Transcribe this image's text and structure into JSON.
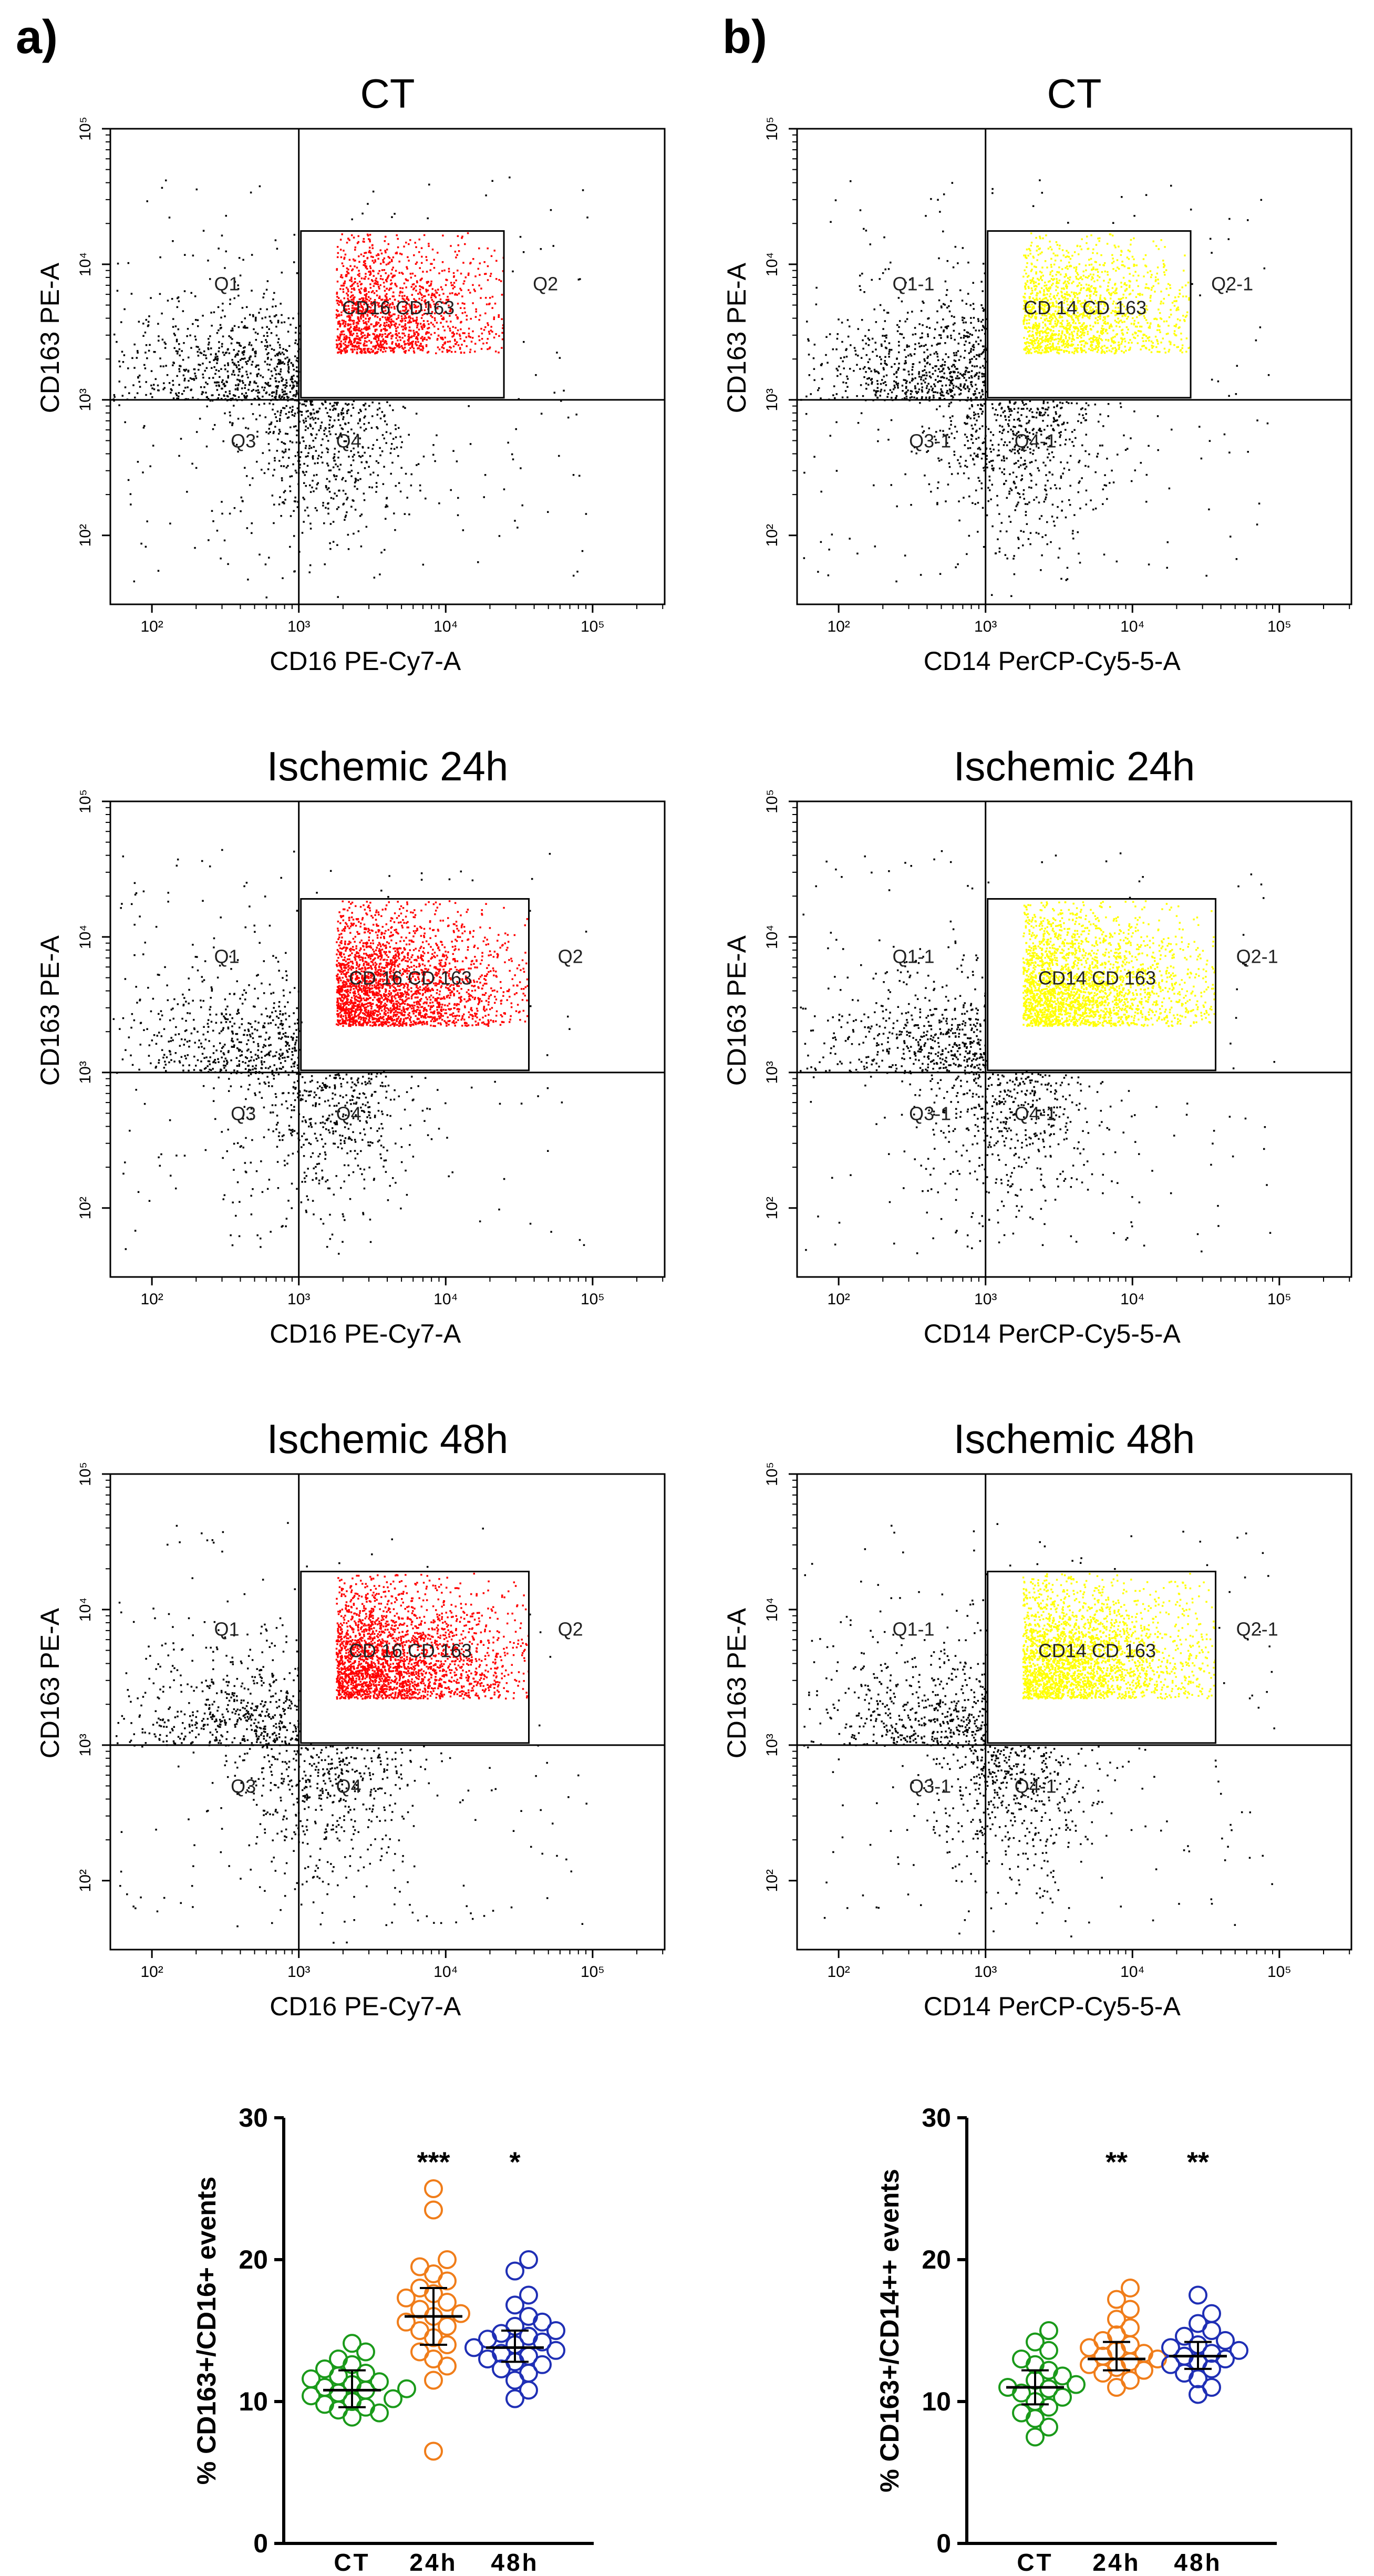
{
  "panels": {
    "a": {
      "letter": "a)"
    },
    "b": {
      "letter": "b)"
    }
  },
  "flow_plots": [
    {
      "id": "a1",
      "column": "a",
      "title": "CT",
      "xlabel": "CD16 PE-Cy7-A",
      "ylabel": "CD163 PE-A",
      "quadrants": [
        "Q1",
        "Q2",
        "Q3",
        "Q4"
      ],
      "gate_label": "CD16 CD163",
      "gate_color": "#ff0000",
      "x_ticks": [
        "10²",
        "10³",
        "10⁴",
        "10⁵"
      ],
      "y_ticks": [
        "10²",
        "10³",
        "10⁴",
        "10⁵"
      ],
      "density": "low"
    },
    {
      "id": "b1",
      "column": "b",
      "title": "CT",
      "xlabel": "CD14 PerCP-Cy5-5-A",
      "ylabel": "CD163 PE-A",
      "quadrants": [
        "Q1-1",
        "Q2-1",
        "Q3-1",
        "Q4-1"
      ],
      "gate_label": "CD 14 CD 163",
      "gate_color": "#ffff00",
      "x_ticks": [
        "10²",
        "10³",
        "10⁴",
        "10⁵"
      ],
      "y_ticks": [
        "10²",
        "10³",
        "10⁴",
        "10⁵"
      ],
      "density": "low"
    },
    {
      "id": "a2",
      "column": "a",
      "title": "Ischemic 24h",
      "xlabel": "CD16 PE-Cy7-A",
      "ylabel": "CD163 PE-A",
      "quadrants": [
        "Q1",
        "Q2",
        "Q3",
        "Q4"
      ],
      "gate_label": "CD 16 CD 163",
      "gate_color": "#ff0000",
      "x_ticks": [
        "10²",
        "10³",
        "10⁴",
        "10⁵"
      ],
      "y_ticks": [
        "10²",
        "10³",
        "10⁴",
        "10⁵"
      ],
      "density": "high"
    },
    {
      "id": "b2",
      "column": "b",
      "title": "Ischemic 24h",
      "xlabel": "CD14 PerCP-Cy5-5-A",
      "ylabel": "CD163 PE-A",
      "quadrants": [
        "Q1-1",
        "Q2-1",
        "Q3-1",
        "Q4-1"
      ],
      "gate_label": "CD14 CD 163",
      "gate_color": "#ffff00",
      "x_ticks": [
        "10²",
        "10³",
        "10⁴",
        "10⁵"
      ],
      "y_ticks": [
        "10²",
        "10³",
        "10⁴",
        "10⁵"
      ],
      "density": "high"
    },
    {
      "id": "a3",
      "column": "a",
      "title": "Ischemic 48h",
      "xlabel": "CD16 PE-Cy7-A",
      "ylabel": "CD163 PE-A",
      "quadrants": [
        "Q1",
        "Q2",
        "Q3",
        "Q4"
      ],
      "gate_label": "CD 16 CD 163",
      "gate_color": "#ff0000",
      "x_ticks": [
        "10²",
        "10³",
        "10⁴",
        "10⁵"
      ],
      "y_ticks": [
        "10²",
        "10³",
        "10⁴",
        "10⁵"
      ],
      "density": "high"
    },
    {
      "id": "b3",
      "column": "b",
      "title": "Ischemic 48h",
      "xlabel": "CD14 PerCP-Cy5-5-A",
      "ylabel": "CD163 PE-A",
      "quadrants": [
        "Q1-1",
        "Q2-1",
        "Q3-1",
        "Q4-1"
      ],
      "gate_label": "CD14 CD 163",
      "gate_color": "#ffff00",
      "x_ticks": [
        "10²",
        "10³",
        "10⁴",
        "10⁵"
      ],
      "y_ticks": [
        "10²",
        "10³",
        "10⁴",
        "10⁵"
      ],
      "density": "high"
    }
  ],
  "chart_data": [
    {
      "type": "scatter",
      "id": "a-dot",
      "ylabel": "% CD163+/CD16+ events",
      "ylim": [
        0,
        30
      ],
      "yticks": [
        0,
        10,
        20,
        30
      ],
      "categories": [
        "CT",
        "24h",
        "48h"
      ],
      "series": [
        {
          "name": "CT",
          "color": "#1a9a1a",
          "median": 10.8,
          "iqr": [
            9.6,
            12.2
          ],
          "values": [
            8.9,
            9.2,
            9.4,
            9.6,
            9.8,
            10.0,
            10.2,
            10.4,
            10.6,
            10.8,
            10.9,
            11.0,
            11.2,
            11.4,
            11.6,
            11.8,
            12.0,
            12.3,
            12.6,
            13.0,
            13.5,
            14.1
          ],
          "significance": ""
        },
        {
          "name": "24h",
          "color": "#f07d1a",
          "median": 16.0,
          "iqr": [
            14.0,
            18.0
          ],
          "values": [
            6.5,
            11.5,
            12.5,
            13.0,
            13.5,
            14.0,
            14.5,
            15.0,
            15.3,
            15.6,
            16.0,
            16.2,
            16.5,
            17.0,
            17.3,
            17.6,
            18.0,
            18.5,
            19.0,
            19.5,
            20.0,
            23.5,
            25.0
          ],
          "significance": "***"
        },
        {
          "name": "48h",
          "color": "#1f2fb5",
          "median": 13.8,
          "iqr": [
            12.8,
            15.0
          ],
          "values": [
            10.2,
            10.8,
            11.5,
            12.0,
            12.3,
            12.6,
            12.8,
            13.0,
            13.2,
            13.4,
            13.6,
            13.8,
            14.0,
            14.2,
            14.4,
            14.6,
            14.8,
            15.0,
            15.3,
            15.6,
            16.0,
            16.8,
            17.5,
            19.2,
            20.0
          ],
          "significance": "*"
        }
      ]
    },
    {
      "type": "scatter",
      "id": "b-dot",
      "ylabel": "% CD163+/CD14++ events",
      "ylim": [
        0,
        30
      ],
      "yticks": [
        0,
        10,
        20,
        30
      ],
      "categories": [
        "CT",
        "24h",
        "48h"
      ],
      "series": [
        {
          "name": "CT",
          "color": "#1a9a1a",
          "median": 11.0,
          "iqr": [
            9.8,
            12.2
          ],
          "values": [
            7.5,
            8.2,
            8.8,
            9.2,
            9.6,
            10.0,
            10.3,
            10.6,
            10.9,
            11.0,
            11.2,
            11.5,
            11.8,
            12.2,
            12.6,
            13.0,
            13.6,
            14.2,
            15.0
          ],
          "significance": ""
        },
        {
          "name": "24h",
          "color": "#f07d1a",
          "median": 13.0,
          "iqr": [
            12.2,
            14.2
          ],
          "values": [
            11.0,
            11.5,
            12.0,
            12.2,
            12.4,
            12.6,
            12.8,
            13.0,
            13.2,
            13.4,
            13.6,
            13.8,
            14.0,
            14.3,
            14.7,
            15.2,
            15.8,
            16.5,
            17.2,
            18.0
          ],
          "significance": "**"
        },
        {
          "name": "48h",
          "color": "#1f2fb5",
          "median": 13.2,
          "iqr": [
            12.3,
            14.2
          ],
          "values": [
            10.5,
            11.0,
            11.6,
            12.0,
            12.3,
            12.6,
            12.8,
            13.0,
            13.2,
            13.4,
            13.6,
            13.8,
            14.0,
            14.3,
            14.6,
            15.0,
            15.5,
            16.2,
            17.5
          ],
          "significance": "**"
        }
      ]
    }
  ]
}
